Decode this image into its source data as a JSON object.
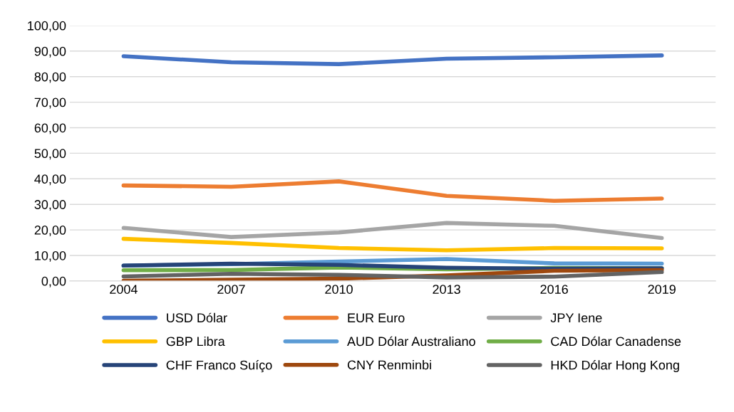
{
  "chart_data": {
    "type": "line",
    "categories": [
      "2004",
      "2007",
      "2010",
      "2013",
      "2016",
      "2019"
    ],
    "series": [
      {
        "name": "USD Dólar",
        "color": "#4472c4",
        "values": [
          88.0,
          85.6,
          84.9,
          87.0,
          87.6,
          88.3
        ]
      },
      {
        "name": "EUR Euro",
        "color": "#ed7d31",
        "values": [
          37.4,
          36.9,
          39.0,
          33.3,
          31.4,
          32.3
        ]
      },
      {
        "name": "JPY Iene",
        "color": "#a5a5a5",
        "values": [
          20.8,
          17.2,
          19.0,
          22.7,
          21.6,
          16.8
        ]
      },
      {
        "name": "GBP Libra",
        "color": "#ffc000",
        "values": [
          16.5,
          14.9,
          12.9,
          12.0,
          12.9,
          12.8
        ]
      },
      {
        "name": "AUD Dólar Australiano",
        "color": "#5b9bd5",
        "values": [
          6.0,
          6.6,
          7.6,
          8.6,
          6.9,
          6.8
        ]
      },
      {
        "name": "CAD Dólar Canadense",
        "color": "#70ad47",
        "values": [
          4.2,
          4.3,
          5.3,
          4.6,
          5.1,
          5.0
        ]
      },
      {
        "name": "CHF Franco Suíço",
        "color": "#264478",
        "values": [
          6.0,
          6.8,
          6.3,
          5.2,
          4.8,
          5.0
        ]
      },
      {
        "name": "CNY Renminbi",
        "color": "#9e480e",
        "values": [
          0.1,
          0.5,
          0.9,
          2.2,
          4.0,
          4.3
        ]
      },
      {
        "name": "HKD Dólar Hong Kong",
        "color": "#636363",
        "values": [
          1.8,
          2.8,
          2.4,
          1.4,
          1.7,
          3.5
        ]
      }
    ],
    "ylim": [
      0,
      100
    ],
    "yticks": [
      {
        "value": 0,
        "label": "0,00"
      },
      {
        "value": 10,
        "label": "10,00"
      },
      {
        "value": 20,
        "label": "20,00"
      },
      {
        "value": 30,
        "label": "30,00"
      },
      {
        "value": 40,
        "label": "40,00"
      },
      {
        "value": 50,
        "label": "50,00"
      },
      {
        "value": 60,
        "label": "60,00"
      },
      {
        "value": 70,
        "label": "70,00"
      },
      {
        "value": 80,
        "label": "80,00"
      },
      {
        "value": 90,
        "label": "90,00"
      },
      {
        "value": 100,
        "label": "100,00"
      }
    ],
    "grid": "y",
    "legend": "bottom",
    "marker": "none",
    "line_style": "solid"
  }
}
